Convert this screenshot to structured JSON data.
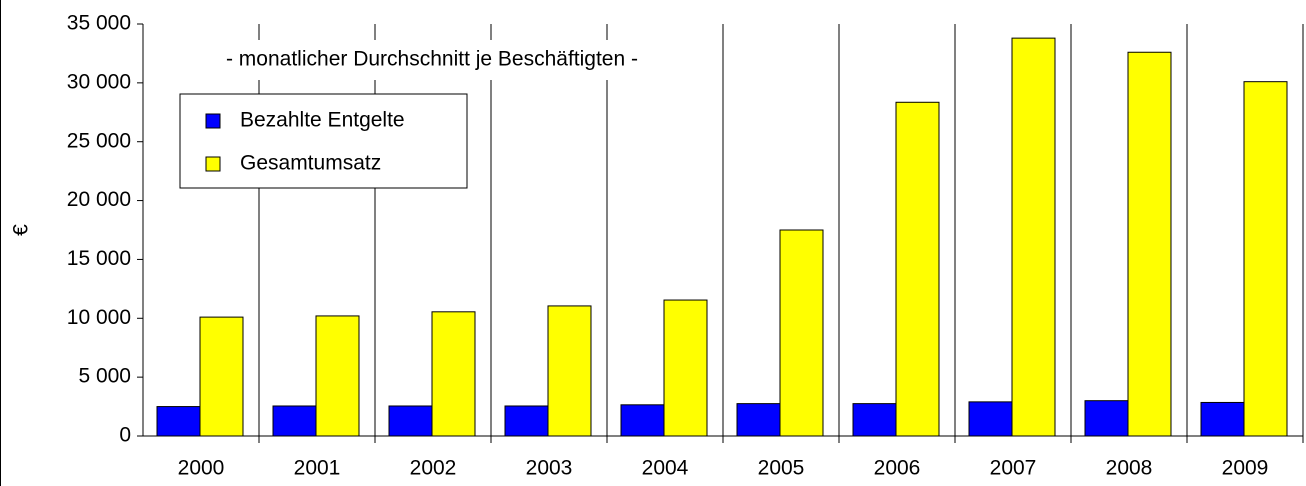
{
  "chart_data": {
    "type": "bar",
    "annotation": "- monatlicher Durchschnitt je Beschäftigten -",
    "y_label": "€",
    "categories": [
      "2000",
      "2001",
      "2002",
      "2003",
      "2004",
      "2005",
      "2006",
      "2007",
      "2008",
      "2009"
    ],
    "series": [
      {
        "name": "Bezahlte Entgelte",
        "color": "#0000ff",
        "values": [
          2500,
          2550,
          2550,
          2550,
          2650,
          2750,
          2750,
          2900,
          3000,
          2850
        ]
      },
      {
        "name": "Gesamtumsatz",
        "color": "#ffff00",
        "values": [
          10100,
          10200,
          10550,
          11050,
          11550,
          17500,
          28350,
          33800,
          32600,
          30100
        ]
      }
    ],
    "ylim": [
      0,
      35000
    ],
    "yticks": [
      0,
      {
        "value": 5000,
        "label": "5 000"
      },
      {
        "value": 10000,
        "label": "10 000"
      },
      {
        "value": 15000,
        "label": "15 000"
      },
      {
        "value": 20000,
        "label": "20 000"
      },
      {
        "value": 25000,
        "label": "25 000"
      },
      {
        "value": 30000,
        "label": "30 000"
      },
      {
        "value": 35000,
        "label": "35 000"
      }
    ],
    "legend": "upper left"
  }
}
